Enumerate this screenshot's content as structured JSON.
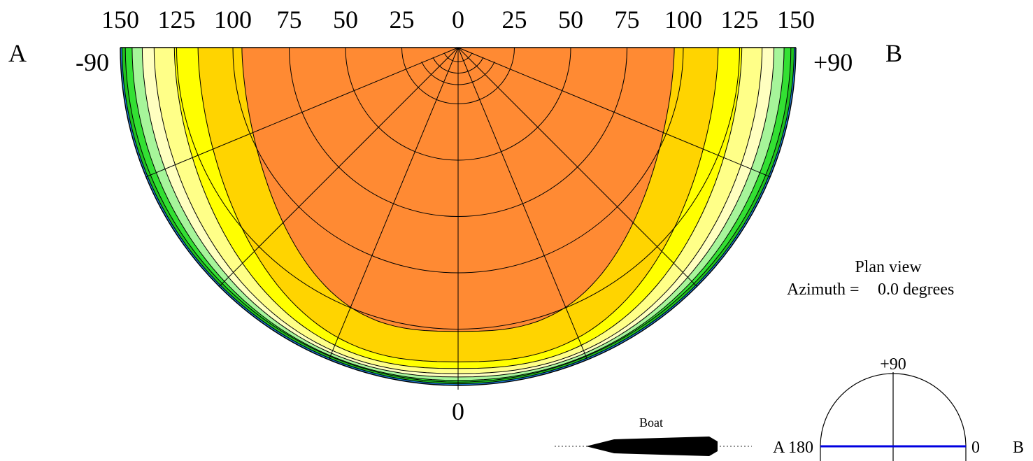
{
  "polar_plot": {
    "range_ticks": [
      "150",
      "125",
      "100",
      "75",
      "50",
      "25",
      "0",
      "25",
      "50",
      "75",
      "100",
      "125",
      "150"
    ],
    "side_a_label": "A",
    "side_b_label": "B",
    "left_angle_label": "-90",
    "right_angle_label": "+90",
    "bottom_angle_label": "0",
    "fill_colors": [
      "#1e7bd8",
      "#1fc21f",
      "#33e033",
      "#a6f59a",
      "#ffffc0",
      "#ffff88",
      "#ffff00",
      "#ffd400",
      "#ff8a33"
    ]
  },
  "plan_view": {
    "title": "Plan view",
    "azimuth_label": "Azimuth =",
    "azimuth_value": "0.0 degrees"
  },
  "boat": {
    "label": "Boat",
    "color": "#000000"
  },
  "inset": {
    "top_label": "+90",
    "left_label": "A 180",
    "right_label": "0",
    "side_label": "B",
    "line_color": "#0000e0"
  }
}
